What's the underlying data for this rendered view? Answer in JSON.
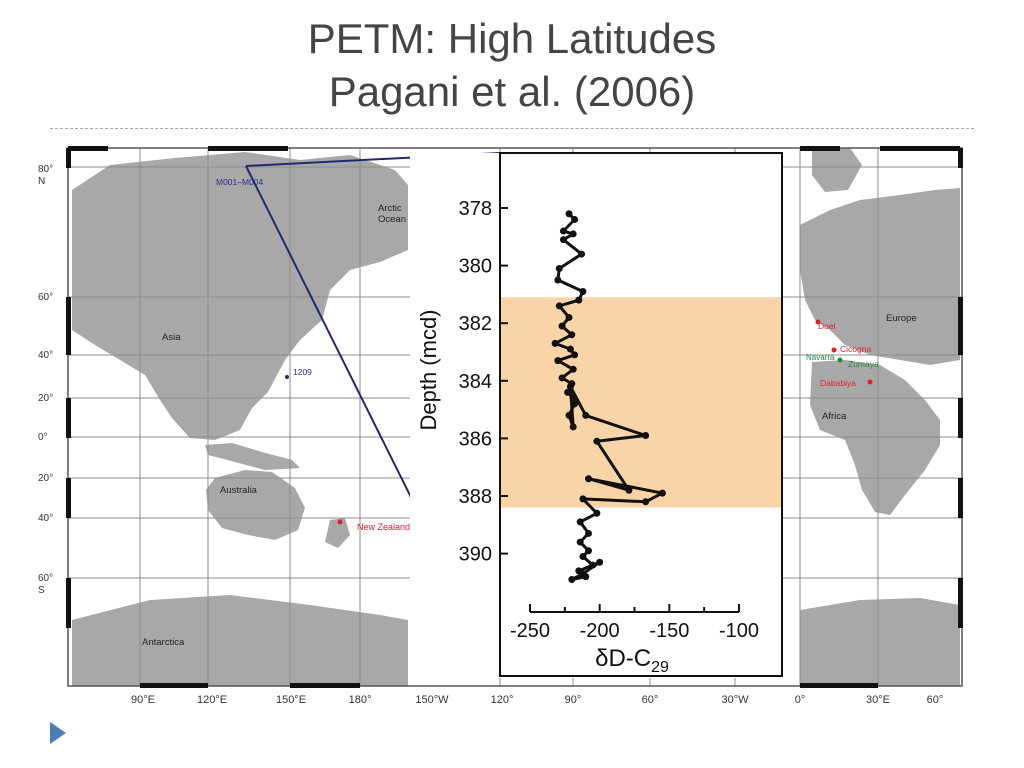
{
  "slide": {
    "title_line1": "PETM: High Latitudes",
    "title_line2": "Pagani et al. (2006)"
  },
  "map": {
    "left_lat_labels": [
      "80°\nN",
      "60°",
      "40°",
      "20°",
      "0°",
      "20°",
      "40°",
      "60°\nS"
    ],
    "lon_labels": [
      "90°E",
      "120°E",
      "150°E",
      "180°",
      "150°W",
      "120°",
      "90°",
      "60°",
      "30°W",
      "0°",
      "30°E",
      "60°"
    ],
    "region_labels": {
      "asia": "Asia",
      "arctic_line1": "Arctic",
      "arctic_line2": "Ocean",
      "australia": "Australia",
      "antarctica": "Antarctica",
      "europe": "Europe",
      "africa": "Africa"
    },
    "sites": {
      "m001": "M001–M004",
      "site_1209": "1209",
      "new_zealand": "New Zealand",
      "doel": "Doel",
      "cicogna": "Cicogna",
      "zumaya": "Zumaya",
      "navarra": "Navarra",
      "dababiya": "Dababiya"
    },
    "colors": {
      "land": "#a8a8a8",
      "ocean": "#ffffff",
      "grid": "#8c8c8c",
      "site_red": "#e0202c",
      "site_green": "#1e8a3a",
      "site_blue": "#2a2a8a",
      "callout": "#1f2a6e"
    }
  },
  "chart_data": {
    "type": "line",
    "ylabel": "Depth (mcd)",
    "xlabel": "δD-C",
    "xlabel_sub": "29",
    "xlim": [
      -250,
      -100
    ],
    "ylim": [
      392,
      376
    ],
    "xticks": [
      -250,
      -200,
      -150,
      -100
    ],
    "xtick_labels": [
      "-250",
      "-200",
      "-150",
      "-100"
    ],
    "yticks": [
      378,
      380,
      382,
      384,
      386,
      388,
      390
    ],
    "ytick_labels": [
      "378",
      "380",
      "382",
      "384",
      "386",
      "388",
      "390"
    ],
    "shaded_band": {
      "from_depth": 381.1,
      "to_depth": 388.4,
      "color": "#f9d4a6"
    },
    "series": [
      {
        "name": "δD-C29",
        "x": [
          -222,
          -218,
          -226,
          -219,
          -226,
          -213,
          -229,
          -230,
          -212,
          -215,
          -229,
          -222,
          -227,
          -220,
          -232,
          -221,
          -218,
          -230,
          -219,
          -227,
          -220,
          -223,
          -219,
          -218,
          -222,
          -219,
          -221,
          -210,
          -167,
          -202,
          -179,
          -208,
          -155,
          -167,
          -212,
          -202,
          -214,
          -208,
          -214,
          -208,
          -212,
          -205,
          -215,
          -200,
          -212,
          -220,
          -210
        ],
        "y": [
          378.2,
          378.4,
          378.8,
          378.9,
          379.1,
          379.6,
          380.1,
          380.5,
          380.9,
          381.2,
          381.4,
          381.8,
          382.1,
          382.4,
          382.7,
          382.9,
          383.1,
          383.3,
          383.6,
          383.9,
          384.1,
          384.4,
          384.6,
          384.8,
          385.2,
          385.6,
          384.2,
          385.2,
          385.9,
          386.1,
          387.8,
          387.4,
          387.9,
          388.2,
          388.1,
          388.6,
          388.9,
          389.3,
          389.6,
          389.9,
          390.1,
          390.4,
          390.6,
          390.3,
          390.7,
          390.9,
          390.8
        ]
      }
    ]
  }
}
